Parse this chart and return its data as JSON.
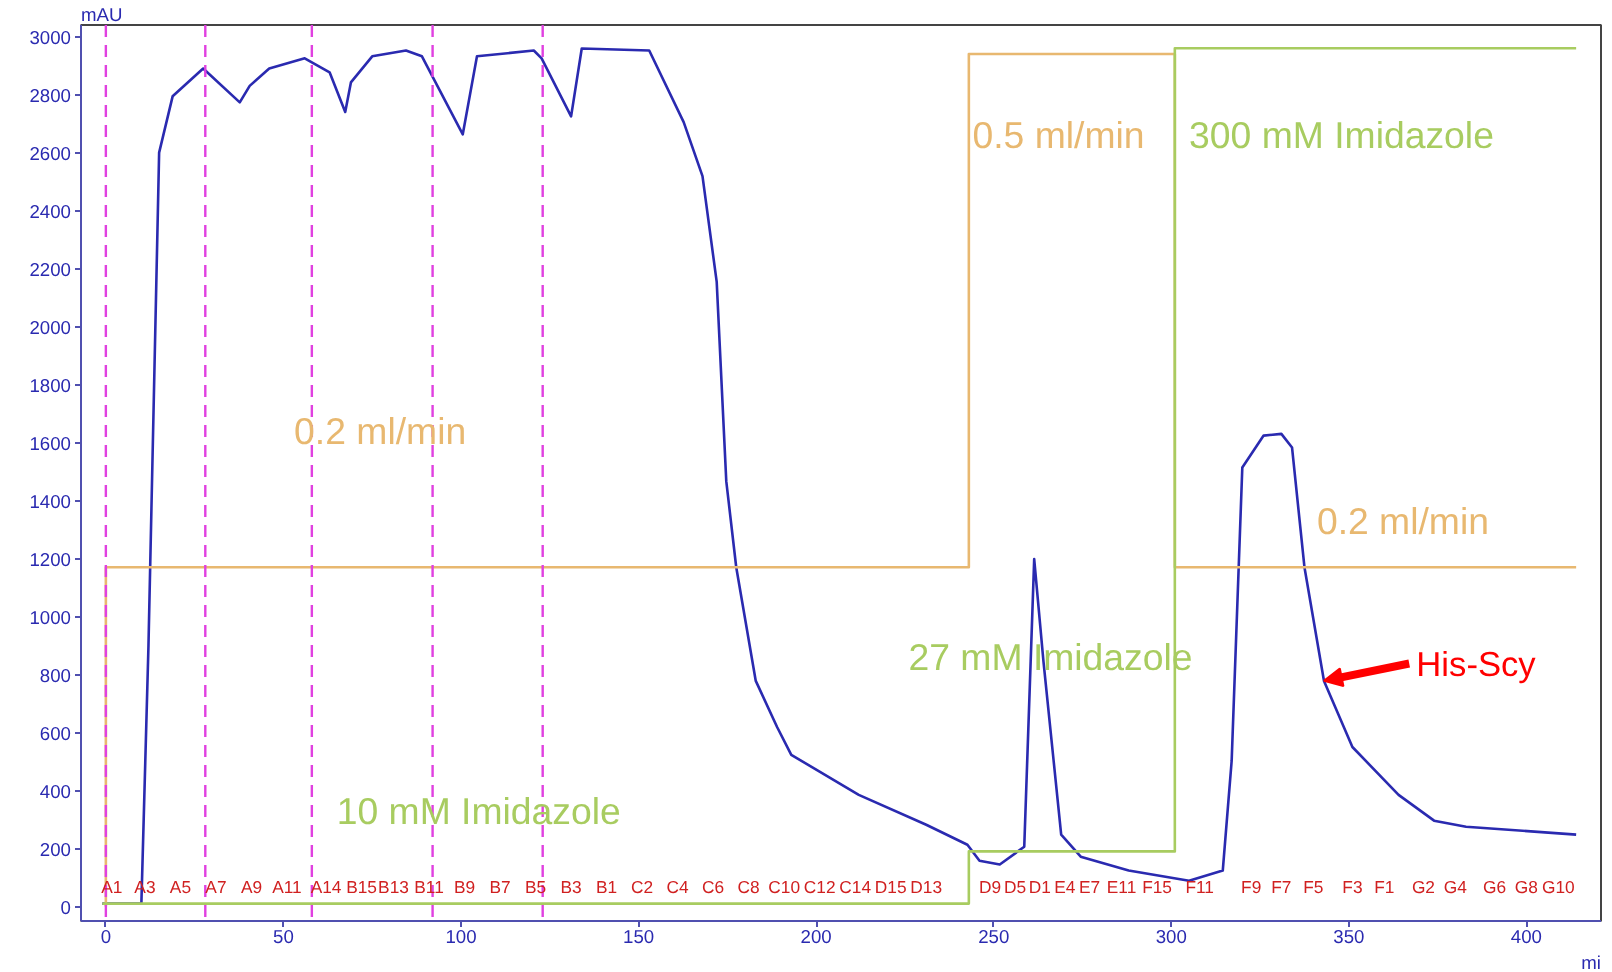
{
  "chart_data": {
    "type": "line",
    "xlabel": "mi",
    "ylabel": "mAU",
    "xlim": [
      -7,
      421
    ],
    "ylim": [
      -50,
      3040
    ],
    "xticks": [
      0,
      50,
      100,
      150,
      200,
      250,
      300,
      350,
      400
    ],
    "yticks": [
      0,
      200,
      400,
      600,
      800,
      1000,
      1200,
      1400,
      1600,
      1800,
      2000,
      2200,
      2400,
      2600,
      2800,
      3000
    ],
    "grid": false,
    "marker": "none",
    "line_style": "solid",
    "series": [
      {
        "color": "#2a2ab0",
        "x": [
          -1,
          10,
          12,
          15,
          18.8,
          27.4,
          37.7,
          40.5,
          46,
          56,
          63,
          67.4,
          69,
          75,
          84.5,
          89,
          100.5,
          104.5,
          120.5,
          122.7,
          131,
          134,
          153,
          162.7,
          168,
          172,
          174.7,
          177.5,
          183,
          189,
          193,
          212,
          231,
          242.6,
          246,
          251.7,
          258.6,
          261.4,
          264,
          269,
          274.5,
          288,
          305,
          314.5,
          317,
          320,
          326,
          331,
          334,
          337.5,
          343,
          351,
          364,
          374,
          383,
          414
        ],
        "values": [
          10,
          10,
          900,
          2600,
          2794,
          2890,
          2773,
          2830,
          2890,
          2925,
          2877,
          2740,
          2842,
          2932,
          2952,
          2932,
          2663,
          2932,
          2952,
          2925,
          2725,
          2959,
          2952,
          2705,
          2519,
          2154,
          1466,
          1170,
          778,
          619,
          523,
          385,
          282,
          213,
          158,
          145,
          206,
          1198,
          846,
          248,
          172,
          124,
          89,
          124,
          502,
          1514,
          1624,
          1630,
          1583,
          1170,
          778,
          550,
          385,
          296,
          275,
          248
        ]
      },
      {
        "color": "#e8b870",
        "x": [
          0,
          0,
          243,
          243,
          301,
          301,
          414
        ],
        "values": [
          0,
          1170,
          1170,
          2940,
          2940,
          1170,
          1170
        ]
      },
      {
        "color": "#a8cc60",
        "x": [
          -1,
          243,
          243,
          301,
          301,
          414
        ],
        "values": [
          10,
          10,
          190,
          190,
          2960,
          2960
        ]
      }
    ],
    "ref_lines": [
      {
        "axis": "x",
        "value": 0,
        "color": "#e040e0",
        "line_style": "dashed"
      },
      {
        "axis": "x",
        "value": 28,
        "color": "#e040e0",
        "line_style": "dashed"
      },
      {
        "axis": "x",
        "value": 58,
        "color": "#e040e0",
        "line_style": "dashed"
      },
      {
        "axis": "x",
        "value": 92,
        "color": "#e040e0",
        "line_style": "dashed"
      },
      {
        "axis": "x",
        "value": 123,
        "color": "#e040e0",
        "line_style": "dashed"
      }
    ],
    "annotations": [
      "0.2 ml/min",
      "0.5 ml/min",
      "300 mM Imidazole",
      "0.2 ml/min",
      "27 mM Imidazole",
      "10 mM Imidazole",
      {
        "text": "His-Scy",
        "x": 343,
        "y": 778
      },
      "A1",
      "A3",
      "A5",
      "A7",
      "A9",
      "A11",
      "A14",
      "B15",
      "B13",
      "B11",
      "B9",
      "B7",
      "B5",
      "B3",
      "B1",
      "C2",
      "C4",
      "C6",
      "C8",
      "C10",
      "C12",
      "C14",
      "D15",
      "D13",
      "D9",
      "D5",
      "D1",
      "E4",
      "E7",
      "E11",
      "F15",
      "F11",
      "F9",
      "F7",
      "F5",
      "F3",
      "F1",
      "G2",
      "G4",
      "G6",
      "G8",
      "G10"
    ]
  }
}
